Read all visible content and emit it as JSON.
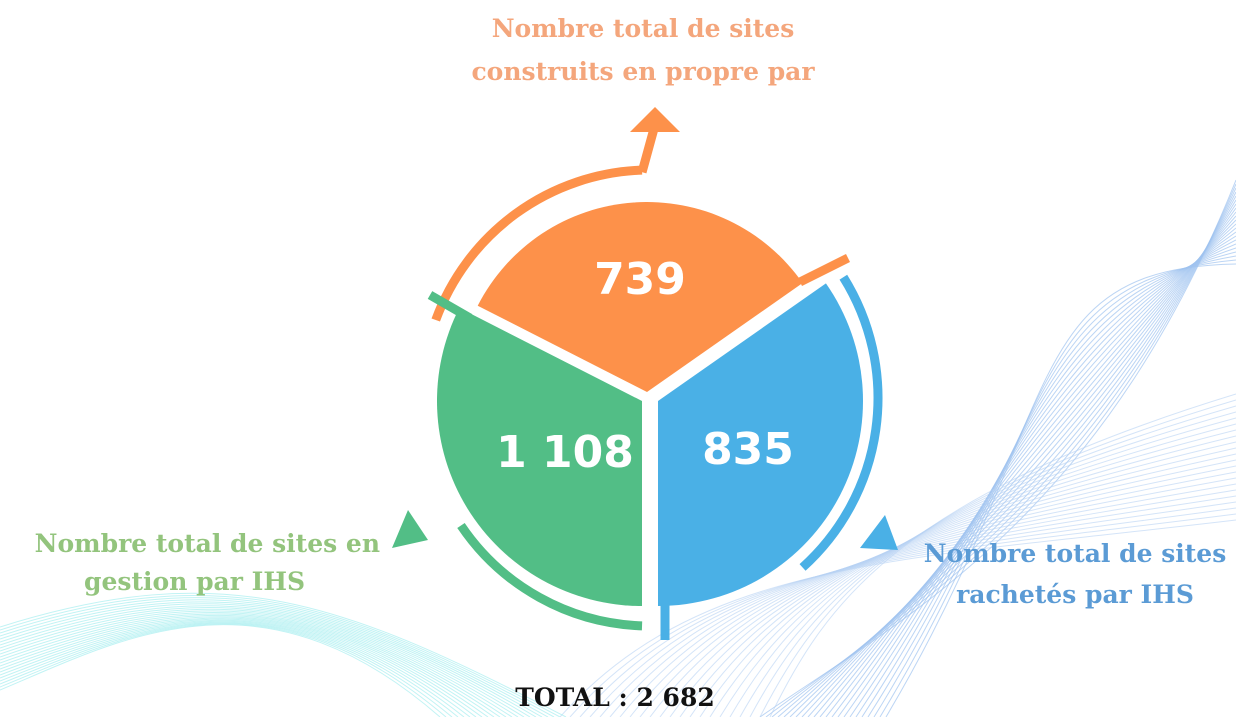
{
  "segments": [
    {
      "title": [
        "Nombre total de sites",
        "construits en propre par"
      ],
      "value": "739"
    },
    {
      "title": [
        "Nombre total de sites en",
        "gestion par IHS"
      ],
      "value": "1 108"
    },
    {
      "title": [
        "Nombre total de sites",
        "rachetés par IHS"
      ],
      "value": "835"
    }
  ],
  "total": "TOTAL : 2 682"
}
